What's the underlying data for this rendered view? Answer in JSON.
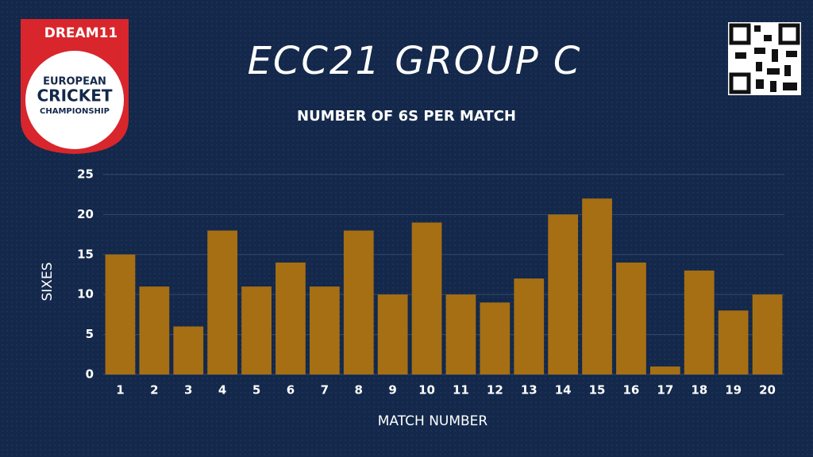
{
  "logo": {
    "brand": "DREAM11",
    "lines": [
      "EUROPEAN",
      "CRICKET",
      "CHAMPIONSHIP"
    ]
  },
  "chart_data": {
    "type": "bar",
    "title": "ECC21 GROUP C",
    "subtitle": "NUMBER OF 6S PER MATCH",
    "x_label": "MATCH NUMBER",
    "y_label": "SIXES",
    "categories": [
      "1",
      "2",
      "3",
      "4",
      "5",
      "6",
      "7",
      "8",
      "9",
      "10",
      "11",
      "12",
      "13",
      "14",
      "15",
      "16",
      "17",
      "18",
      "19",
      "20"
    ],
    "values": [
      15,
      11,
      6,
      18,
      11,
      14,
      11,
      18,
      10,
      19,
      10,
      9,
      12,
      20,
      22,
      14,
      1,
      13,
      8,
      10
    ],
    "color": "#a66f14",
    "ylim": [
      0,
      25
    ],
    "yticks": [
      0,
      5,
      10,
      15,
      20,
      25
    ],
    "grid": true
  }
}
